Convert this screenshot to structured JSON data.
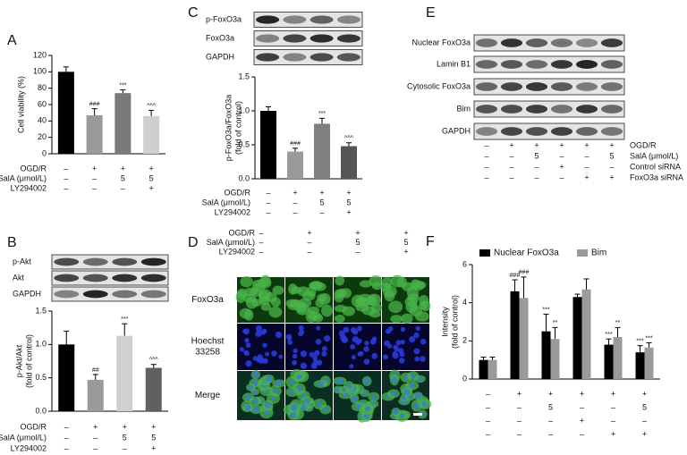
{
  "chart_data": [
    {
      "type": "bar",
      "label": "A",
      "ylabel": [
        "Cell viability (%)"
      ],
      "values": [
        100,
        47,
        74,
        46
      ],
      "errors": [
        6,
        8,
        4,
        7
      ],
      "colors": [
        "#000000",
        "#9a9a9a",
        "#7a7a7a",
        "#cfcfcf"
      ],
      "annotations": [
        null,
        "###",
        "***",
        "^^^"
      ],
      "ylim": [
        0,
        120
      ],
      "yticks": [
        0,
        20,
        40,
        60,
        80,
        100,
        120
      ],
      "conditions": [
        {
          "label": "OGD/R",
          "values": [
            "–",
            "+",
            "+",
            "+"
          ]
        },
        {
          "label": "SalA (μmol/L)",
          "values": [
            "–",
            "–",
            "5",
            "5"
          ]
        },
        {
          "label": "LY294002",
          "values": [
            "–",
            "–",
            "–",
            "+"
          ]
        }
      ]
    },
    {
      "type": "bar",
      "label": "B",
      "blot": [
        "p-Akt",
        "Akt",
        "GAPDH"
      ],
      "ylabel": [
        "p-Akt/Akt",
        "(fold of control)"
      ],
      "values": [
        1.0,
        0.47,
        1.13,
        0.65
      ],
      "errors": [
        0.2,
        0.08,
        0.18,
        0.05
      ],
      "colors": [
        "#000000",
        "#9a9a9a",
        "#d0d0d0",
        "#606060"
      ],
      "annotations": [
        null,
        "##",
        "***",
        "^^^"
      ],
      "ylim": [
        0,
        1.5
      ],
      "yticks": [
        {
          "value": 0,
          "label": "0.0"
        },
        0.5,
        {
          "value": 1,
          "label": "1.0"
        },
        1.5
      ],
      "conditions": [
        {
          "label": "OGD/R",
          "values": [
            "–",
            "+",
            "+",
            "+"
          ]
        },
        {
          "label": "SalA (μmol/L)",
          "values": [
            "–",
            "–",
            "5",
            "5"
          ]
        },
        {
          "label": "LY294002",
          "values": [
            "–",
            "–",
            "–",
            "+"
          ]
        }
      ]
    },
    {
      "type": "bar",
      "label": "C",
      "blot": [
        "p-FoxO3a",
        "FoxO3a",
        "GAPDH"
      ],
      "ylabel": [
        "p-FoxO3a/FoxO3a",
        "(fold of control)"
      ],
      "values": [
        1.0,
        0.4,
        0.81,
        0.48
      ],
      "errors": [
        0.06,
        0.05,
        0.08,
        0.05
      ],
      "colors": [
        "#000000",
        "#9a9a9a",
        "#808080",
        "#555555"
      ],
      "annotations": [
        null,
        "###",
        "***",
        "^^^"
      ],
      "ylim": [
        0,
        1.5
      ],
      "yticks": [
        {
          "value": 0,
          "label": "0.0"
        },
        0.5,
        {
          "value": 1,
          "label": "1.0"
        },
        1.5
      ],
      "conditions": [
        {
          "label": "OGD/R",
          "values": [
            "–",
            "+",
            "+",
            "+"
          ]
        },
        {
          "label": "SalA (μmol/L)",
          "values": [
            "–",
            "–",
            "5",
            "5"
          ]
        },
        {
          "label": "LY294002",
          "values": [
            "–",
            "–",
            "–",
            "+"
          ]
        }
      ]
    },
    {
      "type": "bar",
      "label": "F",
      "ylabel": [
        "Intensity",
        "(fold of control)"
      ],
      "series": [
        {
          "name": "Nuclear FoxO3a",
          "color": "#000000",
          "values": [
            1.0,
            4.6,
            2.5,
            4.3,
            1.8,
            1.4
          ],
          "errors": [
            0.15,
            0.6,
            0.9,
            0.15,
            0.3,
            0.35
          ],
          "annotations": [
            null,
            "###",
            "***",
            null,
            "***",
            "***"
          ]
        },
        {
          "name": "Bim",
          "color": "#9a9a9a",
          "values": [
            1.0,
            4.25,
            2.1,
            4.7,
            2.2,
            1.65
          ],
          "errors": [
            0.15,
            1.1,
            0.6,
            0.55,
            0.5,
            0.25
          ],
          "annotations": [
            null,
            "###",
            "**",
            null,
            "**",
            "***"
          ]
        }
      ],
      "ylim": [
        0,
        6
      ],
      "yticks": [
        0,
        2,
        4,
        6
      ],
      "legend": "top",
      "conditions": [
        {
          "values": [
            "–",
            "+",
            "+",
            "+",
            "+",
            "+"
          ]
        },
        {
          "values": [
            "–",
            "–",
            "5",
            "–",
            "–",
            "5"
          ]
        },
        {
          "values": [
            "–",
            "–",
            "–",
            "+",
            "–",
            "–"
          ]
        },
        {
          "values": [
            "–",
            "–",
            "–",
            "–",
            "+",
            "+"
          ]
        }
      ]
    }
  ],
  "microscopy": {
    "label": "D",
    "conditions": [
      {
        "label": "OGD/R",
        "values": [
          "–",
          "+",
          "+",
          "+"
        ]
      },
      {
        "label": "SalA (μmol/L)",
        "values": [
          "–",
          "–",
          "5",
          "5"
        ]
      },
      {
        "label": "LY294002",
        "values": [
          "–",
          "–",
          "–",
          "+"
        ]
      }
    ],
    "rows": [
      [
        "FoxO3a"
      ],
      [
        "Hoechst",
        "33258"
      ],
      [
        "Merge"
      ]
    ]
  },
  "blot_e": {
    "label": "E",
    "bands": [
      "Nuclear FoxO3a",
      "Lamin B1",
      "Cytosolic FoxO3a",
      "Bim",
      "GAPDH"
    ],
    "conditions": [
      {
        "label": "OGD/R",
        "values": [
          "–",
          "+",
          "+",
          "+",
          "+",
          "+"
        ]
      },
      {
        "label": "SalA (μmol/L)",
        "values": [
          "–",
          "–",
          "5",
          "–",
          "–",
          "5"
        ]
      },
      {
        "label": "Control siRNA",
        "values": [
          "–",
          "–",
          "–",
          "+",
          "–",
          "–"
        ]
      },
      {
        "label": "FoxO3a siRNA",
        "values": [
          "–",
          "–",
          "–",
          "–",
          "+",
          "+"
        ]
      }
    ]
  }
}
